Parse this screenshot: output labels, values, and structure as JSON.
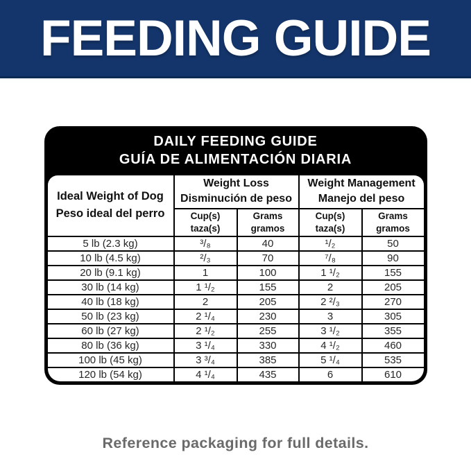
{
  "banner": {
    "title": "FEEDING GUIDE",
    "bg_color": "#14356b",
    "text_color": "#ffffff"
  },
  "card": {
    "header": {
      "line1": "DAILY FEEDING GUIDE",
      "line2": "GUÍA DE ALIMENTACIÓN DIARIA",
      "bg_color": "#000000",
      "text_color": "#ffffff"
    },
    "table": {
      "row_header": {
        "line1": "Ideal Weight of Dog",
        "line2": "Peso ideal del perro"
      },
      "groups": [
        {
          "line1": "Weight Loss",
          "line2": "Disminución de peso"
        },
        {
          "line1": "Weight Management",
          "line2": "Manejo del peso"
        }
      ],
      "subheaders": [
        {
          "line1": "Cup(s)",
          "line2": "taza(s)"
        },
        {
          "line1": "Grams",
          "line2": "gramos"
        },
        {
          "line1": "Cup(s)",
          "line2": "taza(s)"
        },
        {
          "line1": "Grams",
          "line2": "gramos"
        }
      ],
      "rows": [
        [
          "5 lb (2.3 kg)",
          "³/₈",
          "40",
          "¹/₂",
          "50"
        ],
        [
          "10 lb (4.5 kg)",
          "²/₃",
          "70",
          "⁷/₈",
          "90"
        ],
        [
          "20 lb (9.1 kg)",
          "1",
          "100",
          "1 ¹/₂",
          "155"
        ],
        [
          "30 lb (14 kg)",
          "1 ¹/₂",
          "155",
          "2",
          "205"
        ],
        [
          "40 lb (18 kg)",
          "2",
          "205",
          "2 ²/₃",
          "270"
        ],
        [
          "50 lb (23 kg)",
          "2 ¹/₄",
          "230",
          "3",
          "305"
        ],
        [
          "60 lb (27 kg)",
          "2 ¹/₂",
          "255",
          "3 ¹/₂",
          "355"
        ],
        [
          "80 lb (36 kg)",
          "3 ¹/₄",
          "330",
          "4 ¹/₂",
          "460"
        ],
        [
          "100 lb (45 kg)",
          "3 ³/₄",
          "385",
          "5 ¹/₄",
          "535"
        ],
        [
          "120 lb (54 kg)",
          "4 ¹/₄",
          "435",
          "6",
          "610"
        ]
      ]
    }
  },
  "footer": {
    "note": "Reference packaging for full details."
  }
}
